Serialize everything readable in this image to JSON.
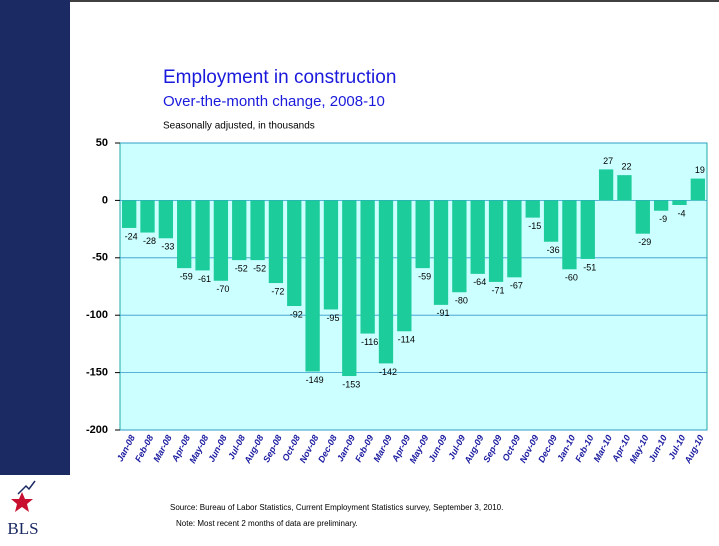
{
  "chart_data": {
    "type": "bar",
    "title": "Employment in construction",
    "subtitle": "Over-the-month change, 2008-10",
    "y_label": "Seasonally adjusted, in thousands",
    "source": "Source:  Bureau of Labor Statistics, Current Employment Statistics survey, September 3, 2010.",
    "note": "Note: Most recent 2 months of data are preliminary.",
    "logo": "BLS",
    "categories": [
      "Jan-08",
      "Feb-08",
      "Mar-08",
      "Apr-08",
      "May-08",
      "Jun-08",
      "Jul-08",
      "Aug-08",
      "Sep-08",
      "Oct-08",
      "Nov-08",
      "Dec-08",
      "Jan-09",
      "Feb-09",
      "Mar-09",
      "Apr-09",
      "May-09",
      "Jun-09",
      "Jul-09",
      "Aug-09",
      "Sep-09",
      "Oct-09",
      "Nov-09",
      "Dec-09",
      "Jan-10",
      "Feb-10",
      "Mar-10",
      "Apr-10",
      "May-10",
      "Jun-10",
      "Jul-10",
      "Aug-10"
    ],
    "values": [
      -24,
      -28,
      -33,
      -59,
      -61,
      -70,
      -52,
      -52,
      -72,
      -92,
      -149,
      -95,
      -153,
      -116,
      -142,
      -114,
      -59,
      -91,
      -80,
      -64,
      -71,
      -67,
      -15,
      -36,
      -60,
      -51,
      27,
      22,
      -29,
      -9,
      -4,
      19
    ],
    "color": "#1ccc9a",
    "ylim": [
      -200,
      50
    ],
    "yticks": [
      50,
      0,
      -50,
      -100,
      -150,
      -200
    ],
    "grid": true
  }
}
